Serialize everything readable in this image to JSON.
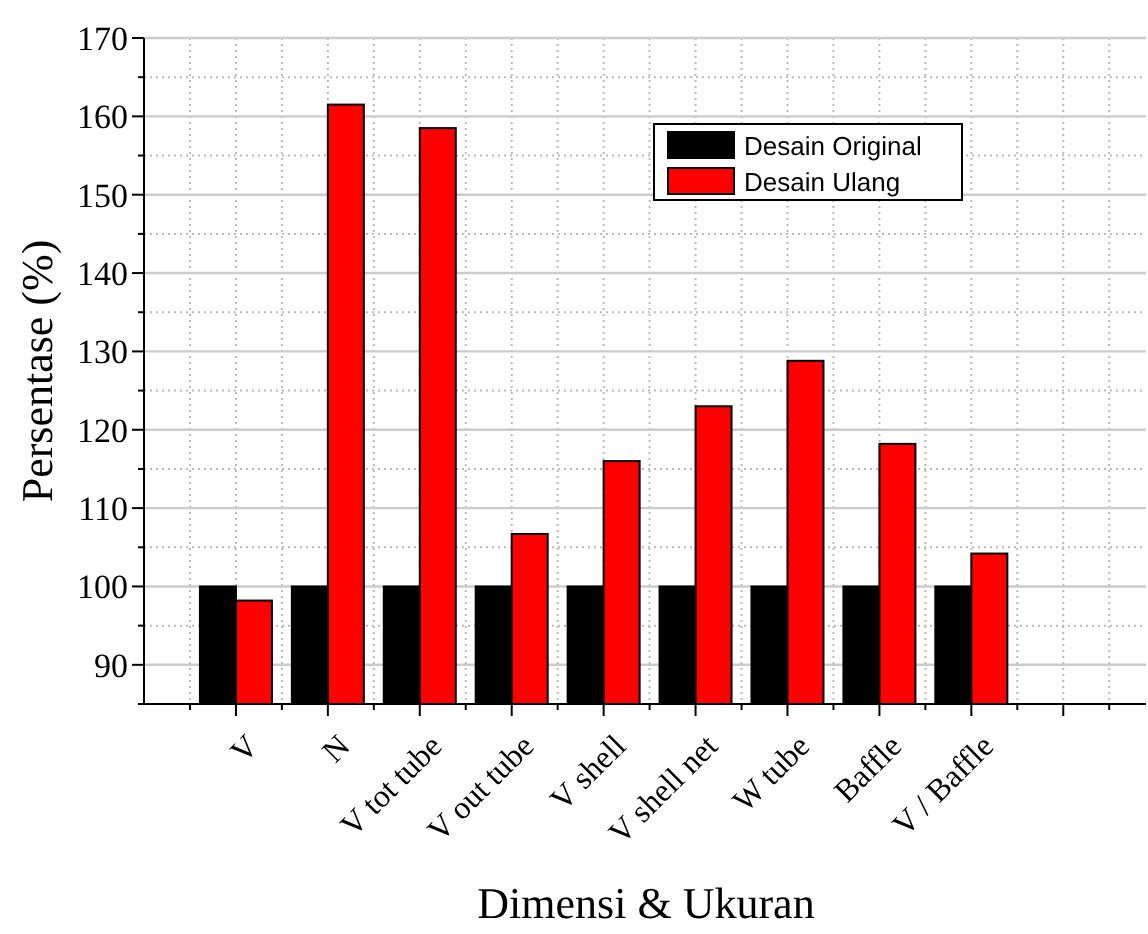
{
  "chart_data": {
    "type": "bar",
    "xlabel": "Dimensi & Ukuran",
    "ylabel": "Persentase (%)",
    "categories": [
      "V",
      "N",
      "V tot tube",
      "V out tube",
      "V shell",
      "V shell net",
      "W tube",
      "Baffle",
      "V / Baffle"
    ],
    "series": [
      {
        "name": "Desain Original",
        "color": "#000000",
        "values": [
          100,
          100,
          100,
          100,
          100,
          100,
          100,
          100,
          100
        ]
      },
      {
        "name": "Desain Ulang",
        "color": "#ff0000",
        "values": [
          98.2,
          161.5,
          158.5,
          106.7,
          116,
          123,
          128.8,
          118.2,
          104.2
        ]
      }
    ],
    "ylim": [
      85,
      170
    ],
    "yticks": [
      90,
      100,
      110,
      120,
      130,
      140,
      150,
      160,
      170
    ],
    "grid": true,
    "legend": "top right"
  }
}
